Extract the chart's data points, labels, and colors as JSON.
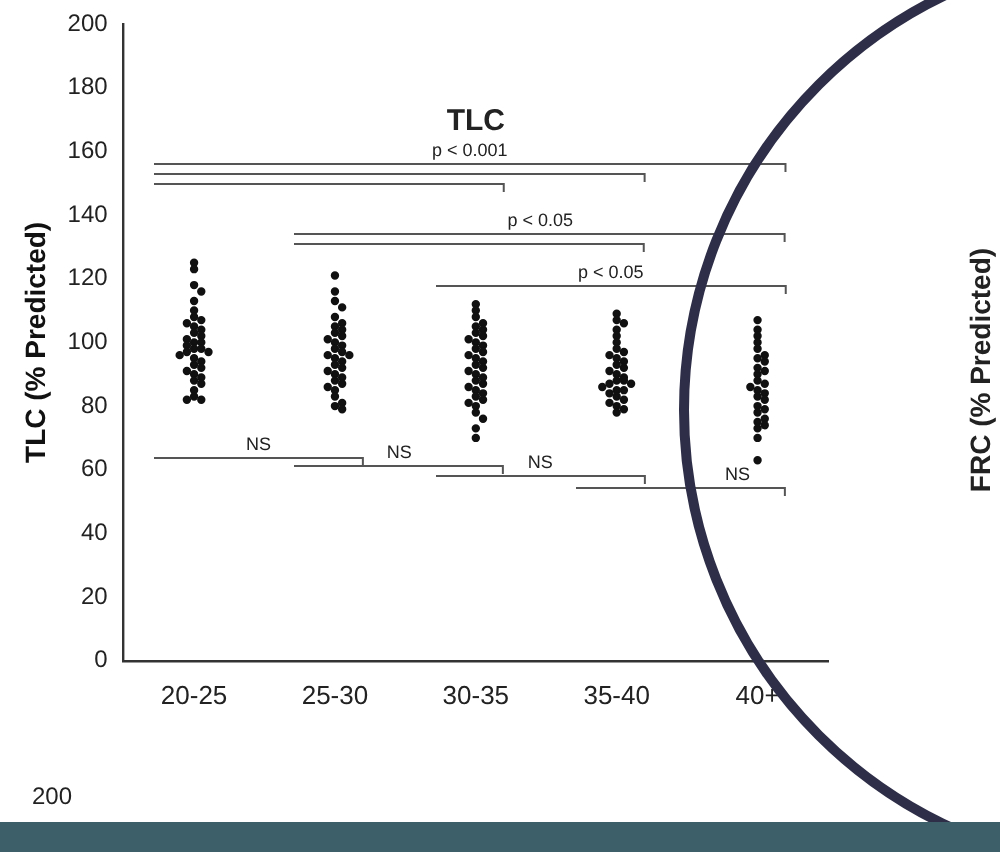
{
  "chart_data": {
    "type": "scatter",
    "title": "TLC",
    "ylabel": "TLC (% Predicted)",
    "categories": [
      "20-25",
      "25-30",
      "30-35",
      "35-40",
      "40+"
    ],
    "ylim": [
      0,
      200
    ],
    "yticks": [
      0,
      20,
      40,
      60,
      80,
      100,
      120,
      140,
      160,
      180,
      200
    ],
    "grid": false,
    "legend": false,
    "marker": "circle",
    "series": [
      {
        "color": "#111111",
        "x": [
          "20-25",
          "20-25",
          "20-25",
          "20-25",
          "20-25",
          "20-25",
          "20-25",
          "20-25",
          "20-25",
          "20-25",
          "20-25",
          "20-25",
          "20-25",
          "20-25",
          "20-25",
          "20-25",
          "20-25",
          "20-25",
          "20-25",
          "20-25",
          "20-25",
          "20-25",
          "20-25",
          "20-25",
          "20-25",
          "20-25",
          "20-25",
          "20-25",
          "20-25",
          "20-25",
          "20-25",
          "20-25",
          "20-25",
          "20-25",
          "20-25"
        ],
        "values": [
          125,
          123,
          118,
          116,
          113,
          110,
          108,
          107,
          106,
          105,
          104,
          103,
          102,
          101,
          100,
          100,
          99,
          98,
          98,
          97,
          97,
          96,
          95,
          94,
          93,
          92,
          91,
          90,
          89,
          88,
          87,
          85,
          83,
          82,
          82
        ]
      },
      {
        "color": "#111111",
        "x": [
          "25-30",
          "25-30",
          "25-30",
          "25-30",
          "25-30",
          "25-30",
          "25-30",
          "25-30",
          "25-30",
          "25-30",
          "25-30",
          "25-30",
          "25-30",
          "25-30",
          "25-30",
          "25-30",
          "25-30",
          "25-30",
          "25-30",
          "25-30",
          "25-30",
          "25-30",
          "25-30",
          "25-30",
          "25-30",
          "25-30",
          "25-30",
          "25-30",
          "25-30",
          "25-30",
          "25-30",
          "25-30"
        ],
        "values": [
          121,
          116,
          113,
          111,
          108,
          106,
          105,
          104,
          103,
          102,
          101,
          100,
          99,
          98,
          97,
          96,
          96,
          95,
          94,
          93,
          92,
          91,
          90,
          89,
          88,
          87,
          86,
          85,
          83,
          81,
          80,
          79
        ]
      },
      {
        "color": "#111111",
        "x": [
          "30-35",
          "30-35",
          "30-35",
          "30-35",
          "30-35",
          "30-35",
          "30-35",
          "30-35",
          "30-35",
          "30-35",
          "30-35",
          "30-35",
          "30-35",
          "30-35",
          "30-35",
          "30-35",
          "30-35",
          "30-35",
          "30-35",
          "30-35",
          "30-35",
          "30-35",
          "30-35",
          "30-35",
          "30-35",
          "30-35",
          "30-35",
          "30-35",
          "30-35",
          "30-35",
          "30-35",
          "30-35",
          "30-35",
          "30-35"
        ],
        "values": [
          112,
          110,
          108,
          106,
          105,
          104,
          103,
          102,
          101,
          100,
          99,
          98,
          97,
          96,
          95,
          94,
          93,
          92,
          91,
          90,
          89,
          88,
          87,
          86,
          85,
          84,
          83,
          82,
          81,
          80,
          78,
          76,
          73,
          70
        ]
      },
      {
        "color": "#111111",
        "x": [
          "35-40",
          "35-40",
          "35-40",
          "35-40",
          "35-40",
          "35-40",
          "35-40",
          "35-40",
          "35-40",
          "35-40",
          "35-40",
          "35-40",
          "35-40",
          "35-40",
          "35-40",
          "35-40",
          "35-40",
          "35-40",
          "35-40",
          "35-40",
          "35-40",
          "35-40",
          "35-40",
          "35-40",
          "35-40",
          "35-40",
          "35-40",
          "35-40",
          "35-40",
          "35-40"
        ],
        "values": [
          109,
          107,
          106,
          104,
          102,
          100,
          98,
          97,
          96,
          95,
          94,
          93,
          92,
          91,
          90,
          89,
          88,
          88,
          87,
          87,
          86,
          85,
          85,
          84,
          83,
          82,
          81,
          80,
          79,
          78
        ]
      },
      {
        "color": "#111111",
        "x": [
          "40+",
          "40+",
          "40+",
          "40+",
          "40+",
          "40+",
          "40+",
          "40+",
          "40+",
          "40+",
          "40+",
          "40+",
          "40+",
          "40+",
          "40+",
          "40+",
          "40+",
          "40+",
          "40+",
          "40+",
          "40+",
          "40+",
          "40+",
          "40+",
          "40+",
          "40+",
          "40+"
        ],
        "values": [
          107,
          104,
          102,
          100,
          98,
          96,
          95,
          94,
          92,
          91,
          90,
          88,
          87,
          86,
          85,
          84,
          83,
          82,
          80,
          79,
          78,
          76,
          75,
          74,
          73,
          70,
          63
        ]
      }
    ],
    "annotations": [
      "p < 0.001",
      "p < 0.05",
      "p < 0.05",
      "NS",
      "NS",
      "NS",
      "NS",
      "FRC (% Predicted)",
      "200"
    ]
  }
}
